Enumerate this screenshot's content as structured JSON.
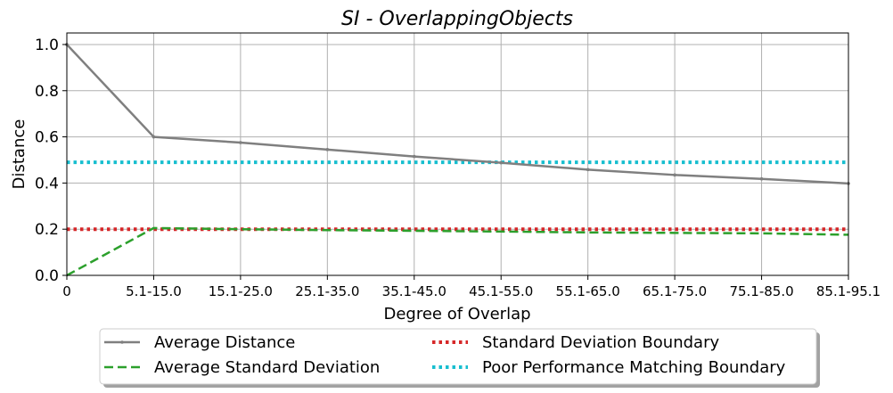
{
  "chart_data": {
    "type": "line",
    "title": "SI - OverlappingObjects",
    "xlabel": "Degree of Overlap",
    "ylabel": "Distance",
    "categories": [
      "0",
      "5.1-15.0",
      "15.1-25.0",
      "25.1-35.0",
      "35.1-45.0",
      "45.1-55.0",
      "55.1-65.0",
      "65.1-75.0",
      "75.1-85.0",
      "85.1-95.1"
    ],
    "ylim": [
      0,
      1.05
    ],
    "yticks": [
      "0.0",
      "0.2",
      "0.4",
      "0.6",
      "0.8",
      "1.0"
    ],
    "grid": true,
    "legend_position": "bottom-center",
    "series": [
      {
        "name": "Average Distance",
        "color": "#7f7f7f",
        "style": "solid-marker",
        "values": [
          1.0,
          0.6,
          0.575,
          0.545,
          0.515,
          0.488,
          0.458,
          0.435,
          0.418,
          0.398
        ]
      },
      {
        "name": "Average Standard Deviation",
        "color": "#2ca02c",
        "style": "dashed",
        "values": [
          0.0,
          0.205,
          0.2,
          0.196,
          0.193,
          0.19,
          0.186,
          0.184,
          0.182,
          0.176
        ]
      },
      {
        "name": "Standard Deviation Boundary",
        "color": "#d62728",
        "style": "dotted",
        "values": [
          0.2,
          0.2,
          0.2,
          0.2,
          0.2,
          0.2,
          0.2,
          0.2,
          0.2,
          0.2
        ]
      },
      {
        "name": "Poor Performance Matching Boundary",
        "color": "#17becf",
        "style": "dotted",
        "values": [
          0.49,
          0.49,
          0.49,
          0.49,
          0.49,
          0.49,
          0.49,
          0.49,
          0.49,
          0.49
        ]
      }
    ]
  }
}
